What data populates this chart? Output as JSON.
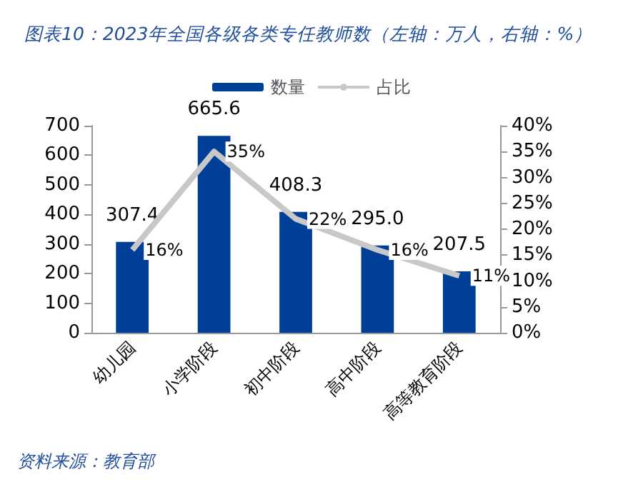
{
  "chart_data": {
    "type": "bar",
    "title": "图表10：2023年全国各级各类专任教师数（左轴：万人，右轴：%）",
    "categories": [
      "幼儿园",
      "小学阶段",
      "初中阶段",
      "高中阶段",
      "高等教育阶段"
    ],
    "series": [
      {
        "name": "数量",
        "color": "#003f98",
        "values": [
          307.4,
          665.6,
          408.3,
          295.0,
          207.5
        ],
        "value_labels": [
          "307.4",
          "665.6",
          "408.3",
          "295.0",
          "207.5"
        ]
      },
      {
        "name": "占比",
        "type": "line",
        "axis": "y2",
        "color": "#c8c8c8",
        "values": [
          16,
          35,
          22,
          16,
          11
        ],
        "value_labels": [
          "16%",
          "35%",
          "22%",
          "16%",
          "11%"
        ]
      }
    ],
    "ylim": [
      0,
      700
    ],
    "yticks": [
      0,
      100,
      200,
      300,
      400,
      500,
      600,
      700
    ],
    "y2lim": [
      0,
      40
    ],
    "y2ticks": [
      {
        "value": 0,
        "label": "0%"
      },
      {
        "value": 5,
        "label": "5%"
      },
      {
        "value": 10,
        "label": "10%"
      },
      {
        "value": 15,
        "label": "15%"
      },
      {
        "value": 20,
        "label": "20%"
      },
      {
        "value": 25,
        "label": "25%"
      },
      {
        "value": 30,
        "label": "30%"
      },
      {
        "value": 35,
        "label": "35%"
      },
      {
        "value": 40,
        "label": "40%"
      }
    ],
    "legend": "top",
    "grid": false,
    "marker": "none",
    "annotations": [
      "资料来源：教育部"
    ]
  }
}
